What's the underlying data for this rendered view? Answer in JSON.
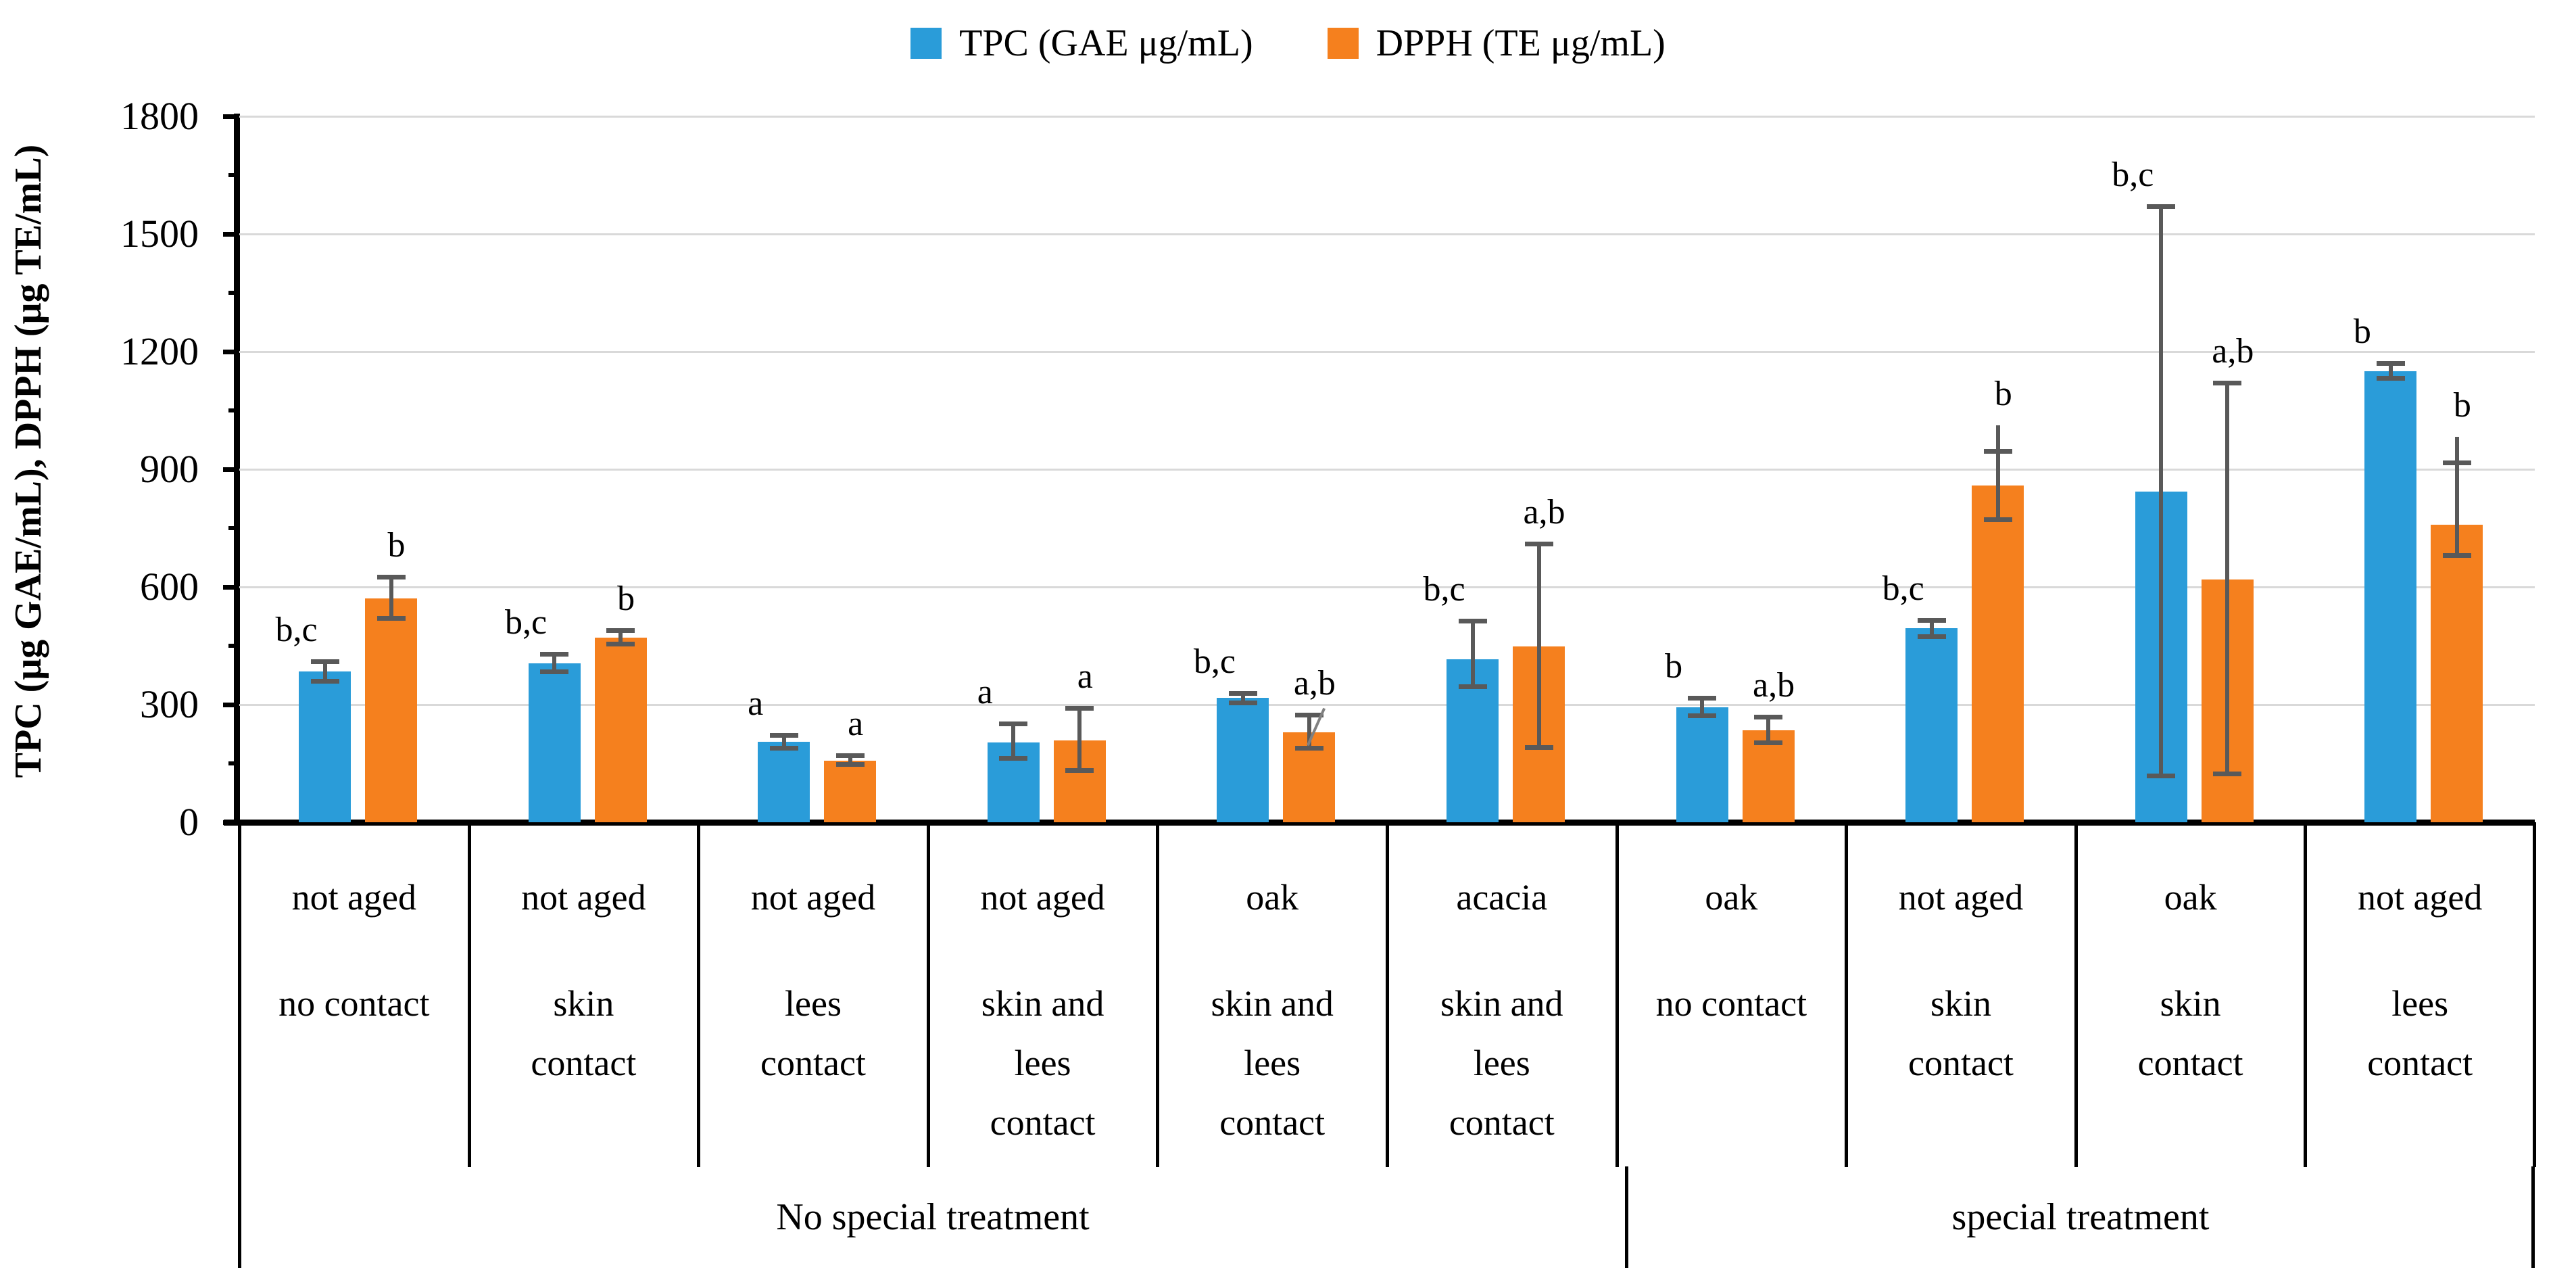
{
  "legend": {
    "items": [
      {
        "label": "TPC (GAE μg/mL)",
        "color": "#2A9CD9",
        "icon": "blue-square-swatch"
      },
      {
        "label": "DPPH (TE μg/mL)",
        "color": "#F5801E",
        "icon": "orange-square-swatch"
      }
    ]
  },
  "y_axis": {
    "title": "TPC (μg GAE/mL), DPPH (μg TE/mL)",
    "tick_labels": [
      "1800",
      "1500",
      "1200",
      "900",
      "600",
      "300",
      "0"
    ],
    "min": 0,
    "max": 1800,
    "major_step": 300,
    "minor_step": 150
  },
  "colors": {
    "tpc": "#2A9CD9",
    "dpph": "#F5801E",
    "error_bar": "#595959",
    "gridline": "#D9D9D9",
    "axis": "#000000"
  },
  "chart_data": {
    "type": "bar",
    "title": "",
    "xlabel": "",
    "ylabel": "TPC (μg GAE/mL), DPPH (μg TE/mL)",
    "ylim": [
      0,
      1800
    ],
    "grid": true,
    "legend_position": "top-center",
    "series_names": [
      "TPC (GAE μg/mL)",
      "DPPH (TE μg/mL)"
    ],
    "groups": [
      {
        "aging": "not aged",
        "contact": "no contact",
        "contact_lines": [
          "no contact"
        ],
        "treatment": "No special treatment",
        "tpc": {
          "value": 385,
          "err_up": 25,
          "err_down": 25,
          "sig": "b,c",
          "err_style": "T"
        },
        "dpph": {
          "value": 571,
          "err_up": 55,
          "err_down": 50,
          "sig": "b",
          "err_style": "T"
        }
      },
      {
        "aging": "not aged",
        "contact": "skin contact",
        "contact_lines": [
          "skin",
          "contact"
        ],
        "treatment": "No special treatment",
        "tpc": {
          "value": 405,
          "err_up": 24,
          "err_down": 21,
          "sig": "b,c",
          "err_style": "T"
        },
        "dpph": {
          "value": 471,
          "err_up": 19,
          "err_down": 16,
          "sig": "b",
          "err_style": "T"
        }
      },
      {
        "aging": "not aged",
        "contact": "lees contact",
        "contact_lines": [
          "lees",
          "contact"
        ],
        "treatment": "No special treatment",
        "tpc": {
          "value": 205,
          "err_up": 17,
          "err_down": 16,
          "sig": "a",
          "err_style": "T"
        },
        "dpph": {
          "value": 157,
          "err_up": 13,
          "err_down": 9,
          "sig": "a",
          "err_style": "T"
        }
      },
      {
        "aging": "not aged",
        "contact": "skin and lees contact",
        "contact_lines": [
          "skin and",
          "lees",
          "contact"
        ],
        "treatment": "No special treatment",
        "tpc": {
          "value": 203,
          "err_up": 48,
          "err_down": 39,
          "sig": "a",
          "err_style": "T"
        },
        "dpph": {
          "value": 208,
          "err_up": 83,
          "err_down": 76,
          "sig": "a",
          "err_style": "T"
        }
      },
      {
        "aging": "oak",
        "contact": "skin and lees contact",
        "contact_lines": [
          "skin and",
          "lees",
          "contact"
        ],
        "treatment": "No special treatment",
        "tpc": {
          "value": 317,
          "err_up": 12,
          "err_down": 12,
          "sig": "b,c",
          "err_style": "T"
        },
        "dpph": {
          "value": 229,
          "err_up": 46,
          "err_down": 39,
          "sig": "a,b",
          "err_style": "T",
          "leader": true
        }
      },
      {
        "aging": "acacia",
        "contact": "skin and lees contact",
        "contact_lines": [
          "skin and",
          "lees",
          "contact"
        ],
        "treatment": "No special treatment",
        "tpc": {
          "value": 416,
          "err_up": 98,
          "err_down": 69,
          "sig": "b,c",
          "err_style": "T"
        },
        "dpph": {
          "value": 449,
          "err_up": 261,
          "err_down": 257,
          "sig": "a,b",
          "err_style": "T"
        }
      },
      {
        "aging": "oak",
        "contact": "no contact",
        "contact_lines": [
          "no contact"
        ],
        "treatment": "special treatment",
        "tpc": {
          "value": 293,
          "err_up": 25,
          "err_down": 21,
          "sig": "b",
          "err_style": "T"
        },
        "dpph": {
          "value": 234,
          "err_up": 35,
          "err_down": 31,
          "sig": "a,b",
          "err_style": "T"
        }
      },
      {
        "aging": "not aged",
        "contact": "skin contact",
        "contact_lines": [
          "skin",
          "contact"
        ],
        "treatment": "special treatment",
        "tpc": {
          "value": 495,
          "err_up": 20,
          "err_down": 20,
          "sig": "b,c",
          "err_style": "T"
        },
        "dpph": {
          "value": 859,
          "err_up": 87,
          "err_down": 87,
          "sig": "b",
          "err_style": "plus"
        }
      },
      {
        "aging": "oak",
        "contact": "skin contact",
        "contact_lines": [
          "skin",
          "contact"
        ],
        "treatment": "special treatment",
        "tpc": {
          "value": 843,
          "err_up": 728,
          "err_down": 724,
          "sig": "b,c",
          "err_style": "T"
        },
        "dpph": {
          "value": 619,
          "err_up": 502,
          "err_down": 494,
          "sig": "a,b",
          "err_style": "T"
        }
      },
      {
        "aging": "not aged",
        "contact": "lees contact",
        "contact_lines": [
          "lees",
          "contact"
        ],
        "treatment": "special treatment",
        "tpc": {
          "value": 1150,
          "err_up": 21,
          "err_down": 18,
          "sig": "b",
          "err_style": "T"
        },
        "dpph": {
          "value": 758,
          "err_up": 159,
          "err_down": 77,
          "sig": "b",
          "err_style": "plus"
        }
      }
    ],
    "treatment_spans": [
      {
        "label": "No special treatment",
        "start_group": 0,
        "end_group": 5
      },
      {
        "label": "special treatment",
        "start_group": 6,
        "end_group": 9
      }
    ]
  }
}
